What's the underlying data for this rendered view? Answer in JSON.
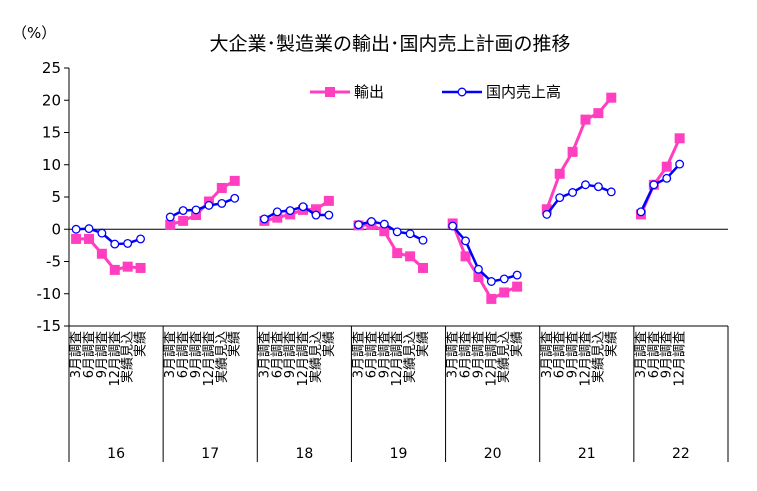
{
  "chart_data": {
    "type": "line",
    "title": "大企業･製造業の輸出･国内売上計画の推移",
    "unit_label": "（%）",
    "ylim": [
      -15,
      25
    ],
    "yticks": [
      25,
      20,
      15,
      10,
      5,
      0,
      -5,
      -10,
      -15
    ],
    "legend_position": "top-center",
    "grid": false,
    "groups": [
      {
        "label": "16",
        "categories": [
          "3月調査",
          "6月調査",
          "9月調査",
          "12月調査",
          "実績見込",
          "実績"
        ]
      },
      {
        "label": "17",
        "categories": [
          "3月調査",
          "6月調査",
          "9月調査",
          "12月調査",
          "実績見込",
          "実績"
        ]
      },
      {
        "label": "18",
        "categories": [
          "3月調査",
          "6月調査",
          "9月調査",
          "12月調査",
          "実績見込",
          "実績"
        ]
      },
      {
        "label": "19",
        "categories": [
          "3月調査",
          "6月調査",
          "9月調査",
          "12月調査",
          "実績見込",
          "実績"
        ]
      },
      {
        "label": "20",
        "categories": [
          "3月調査",
          "6月調査",
          "9月調査",
          "12月調査",
          "実績見込",
          "実績"
        ]
      },
      {
        "label": "21",
        "categories": [
          "3月調査",
          "6月調査",
          "9月調査",
          "12月調査",
          "実績見込",
          "実績"
        ]
      },
      {
        "label": "22",
        "categories": [
          "3月調査",
          "6月調査",
          "9月調査",
          "12月調査"
        ]
      }
    ],
    "series": [
      {
        "name": "輸出",
        "color": "#ff3fbf",
        "marker": "square",
        "values": [
          [
            -1.5,
            -1.5,
            -3.8,
            -6.3,
            -5.8,
            -6.0
          ],
          [
            0.7,
            1.3,
            2.2,
            4.3,
            6.4,
            7.5
          ],
          [
            1.3,
            1.8,
            2.3,
            3.0,
            3.1,
            4.4
          ],
          [
            0.6,
            0.7,
            -0.3,
            -3.7,
            -4.2,
            -6.0
          ],
          [
            0.9,
            -4.2,
            -7.4,
            -10.8,
            -9.8,
            -8.9
          ],
          [
            3.1,
            8.6,
            12.0,
            17.0,
            18.0,
            20.4
          ],
          [
            2.3,
            6.9,
            9.7,
            14.1
          ]
        ]
      },
      {
        "name": "国内売上高",
        "color": "#0000ff",
        "marker": "circle",
        "values": [
          [
            0.0,
            0.1,
            -0.6,
            -2.3,
            -2.2,
            -1.5
          ],
          [
            1.9,
            2.9,
            3.0,
            3.7,
            4.0,
            4.8
          ],
          [
            1.6,
            2.7,
            2.9,
            3.5,
            2.2,
            2.2
          ],
          [
            0.7,
            1.2,
            0.8,
            -0.4,
            -0.7,
            -1.7
          ],
          [
            0.5,
            -1.8,
            -6.2,
            -8.1,
            -7.7,
            -7.1
          ],
          [
            2.3,
            4.9,
            5.7,
            6.9,
            6.6,
            5.8
          ],
          [
            2.7,
            6.9,
            7.9,
            10.1
          ]
        ]
      }
    ]
  }
}
